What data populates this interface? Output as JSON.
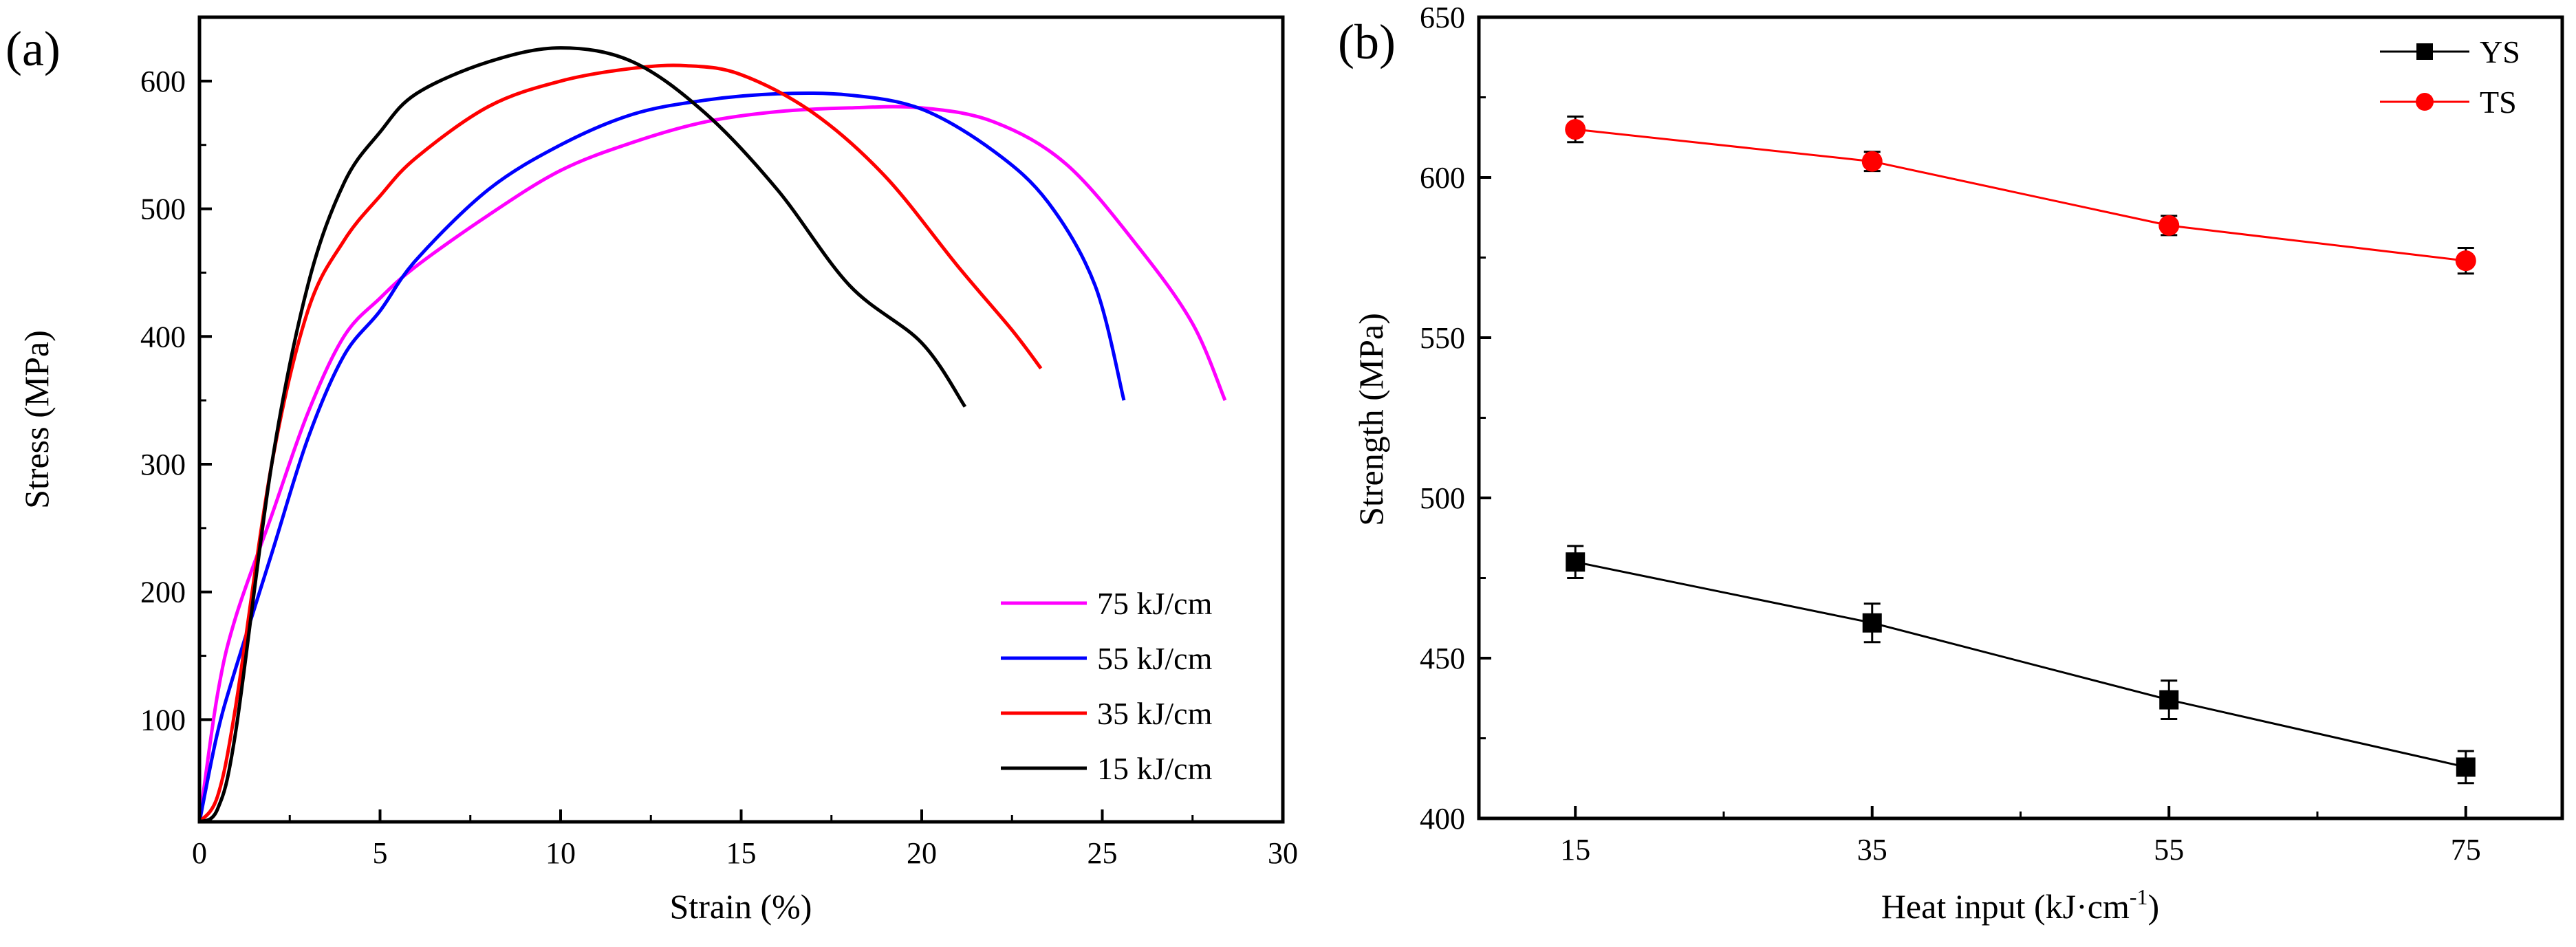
{
  "chart_data": [
    {
      "type": "line",
      "panel_label": "(a)",
      "xlabel": "Strain (%)",
      "ylabel": "Stress (MPa)",
      "xlim": [
        0,
        30
      ],
      "ylim": [
        20,
        650
      ],
      "xticks": [
        0,
        5,
        10,
        15,
        20,
        25,
        30
      ],
      "yticks": [
        100,
        200,
        300,
        400,
        500,
        600
      ],
      "legend_position": "bottom-right",
      "series": [
        {
          "name": "75 kJ/cm",
          "color": "#ff00ff",
          "x": [
            0,
            0.5,
            1,
            2,
            3,
            4,
            5,
            6,
            8,
            10,
            12,
            14,
            16,
            18,
            20,
            22,
            24,
            26,
            27.5,
            28.4
          ],
          "y": [
            20,
            120,
            180,
            260,
            340,
            400,
            430,
            455,
            495,
            530,
            552,
            568,
            576,
            579,
            579,
            568,
            535,
            470,
            410,
            350
          ]
        },
        {
          "name": "55 kJ/cm",
          "color": "#0000ff",
          "x": [
            0,
            0.5,
            1,
            2,
            3,
            4,
            5,
            6,
            8,
            10,
            12,
            14,
            16,
            18,
            20,
            22,
            23.5,
            24.8,
            25.6
          ],
          "y": [
            20,
            90,
            140,
            230,
            320,
            385,
            420,
            460,
            515,
            550,
            574,
            585,
            590,
            589,
            578,
            545,
            505,
            440,
            350
          ]
        },
        {
          "name": "35 kJ/cm",
          "color": "#ff0000",
          "x": [
            0,
            0.5,
            1,
            2,
            3,
            4,
            5,
            6,
            8,
            10,
            12,
            13.5,
            15,
            17,
            19,
            21,
            22.5,
            23.3
          ],
          "y": [
            20,
            40,
            110,
            300,
            420,
            475,
            510,
            540,
            580,
            600,
            610,
            612,
            605,
            575,
            525,
            455,
            405,
            375
          ]
        },
        {
          "name": "15 kJ/cm",
          "color": "#000000",
          "x": [
            0,
            0.5,
            1,
            2,
            3,
            4,
            5,
            6,
            8,
            10,
            12,
            14,
            16,
            18,
            20,
            21.2
          ],
          "y": [
            20,
            30,
            90,
            300,
            440,
            520,
            560,
            590,
            615,
            626,
            615,
            575,
            515,
            440,
            395,
            345
          ]
        }
      ]
    },
    {
      "type": "line",
      "panel_label": "(b)",
      "xlabel_main": "Heat input (kJ·cm",
      "xlabel_exp": "-1",
      "xlabel_tail": ")",
      "ylabel": "Strength (MPa)",
      "categories": [
        "15",
        "35",
        "55",
        "75"
      ],
      "x": [
        15,
        35,
        55,
        75
      ],
      "ylim": [
        400,
        650
      ],
      "yticks": [
        400,
        450,
        500,
        550,
        600,
        650
      ],
      "legend_position": "top-right",
      "series": [
        {
          "name": "YS",
          "color": "#000000",
          "marker": "square",
          "values": [
            480,
            461,
            437,
            416
          ],
          "errors": [
            5,
            6,
            6,
            5
          ]
        },
        {
          "name": "TS",
          "color": "#ff0000",
          "marker": "circle",
          "values": [
            615,
            605,
            585,
            574
          ],
          "errors": [
            4,
            3,
            3,
            4
          ]
        }
      ]
    }
  ]
}
